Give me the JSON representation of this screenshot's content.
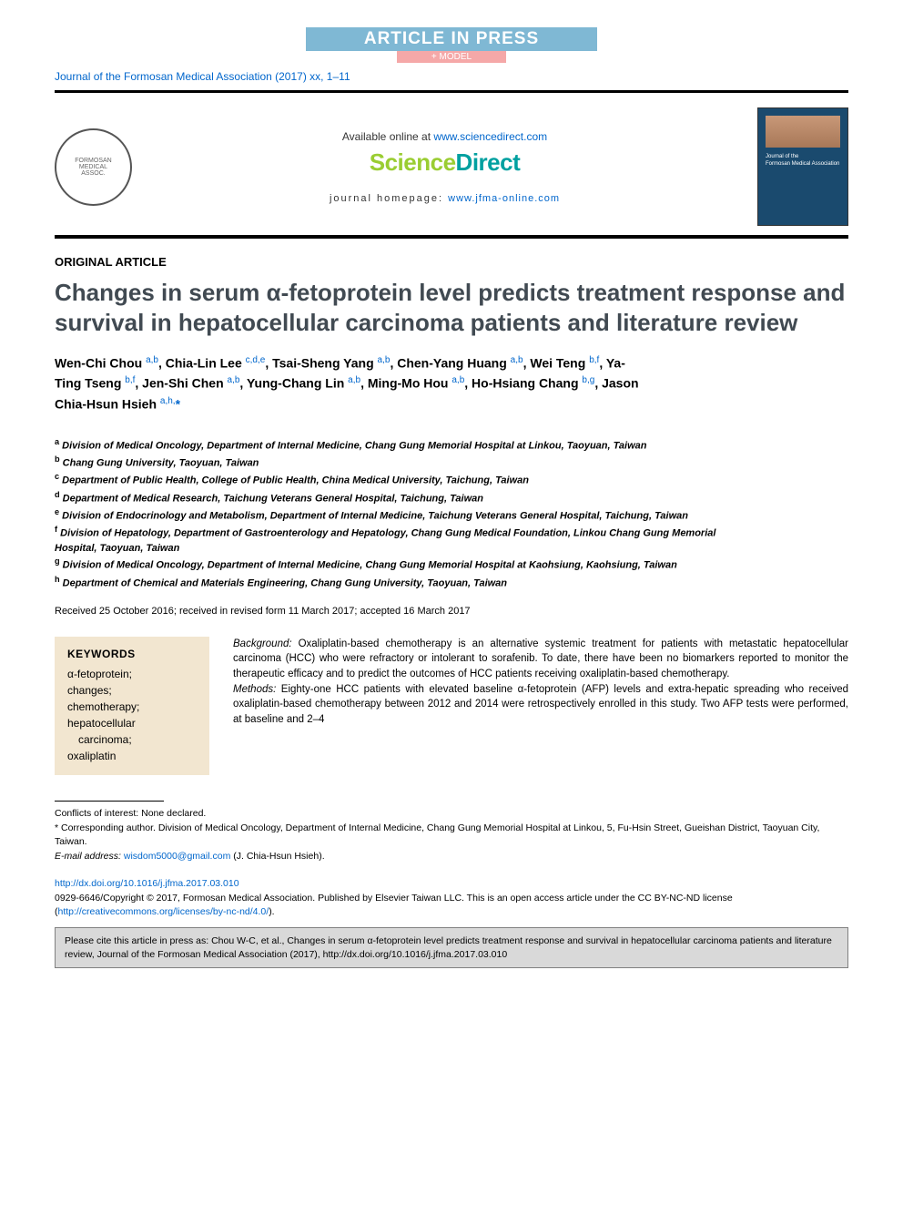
{
  "banner": {
    "article_in_press": "ARTICLE IN PRESS",
    "model": "+ MODEL"
  },
  "journal_ref": "Journal of the Formosan Medical Association (2017) xx, 1–11",
  "header": {
    "available_prefix": "Available online at ",
    "available_url": "www.sciencedirect.com",
    "brand_science": "Science",
    "brand_direct": "Direct",
    "homepage_prefix": "journal homepage: ",
    "homepage_url": "www.jfma-online.com",
    "cover_line1": "Journal of the",
    "cover_line2": "Formosan Medical Association"
  },
  "article_type": "ORIGINAL ARTICLE",
  "title": "Changes in serum α-fetoprotein level predicts treatment response and survival in hepatocellular carcinoma patients and literature review",
  "authors_html": "Wen-Chi Chou <sup>a,b</sup>, Chia-Lin Lee <sup>c,d,e</sup>, Tsai-Sheng Yang <sup>a,b</sup>, Chen-Yang Huang <sup>a,b</sup>, Wei Teng <sup>b,f</sup>, Ya-Ting Tseng <sup>b,f</sup>, Jen-Shi Chen <sup>a,b</sup>, Yung-Chang Lin <sup>a,b</sup>, Ming-Mo Hou <sup>a,b</sup>, Ho-Hsiang Chang <sup>b,g</sup>, Jason Chia-Hsun Hsieh <sup>a,h,</sup><span class=\"star\">*</span>",
  "affiliations": [
    {
      "key": "a",
      "text": "Division of Medical Oncology, Department of Internal Medicine, Chang Gung Memorial Hospital at Linkou, Taoyuan, Taiwan"
    },
    {
      "key": "b",
      "text": "Chang Gung University, Taoyuan, Taiwan"
    },
    {
      "key": "c",
      "text": "Department of Public Health, College of Public Health, China Medical University, Taichung, Taiwan"
    },
    {
      "key": "d",
      "text": "Department of Medical Research, Taichung Veterans General Hospital, Taichung, Taiwan"
    },
    {
      "key": "e",
      "text": "Division of Endocrinology and Metabolism, Department of Internal Medicine, Taichung Veterans General Hospital, Taichung, Taiwan"
    },
    {
      "key": "f",
      "text": "Division of Hepatology, Department of Gastroenterology and Hepatology, Chang Gung Medical Foundation, Linkou Chang Gung Memorial Hospital, Taoyuan, Taiwan"
    },
    {
      "key": "g",
      "text": "Division of Medical Oncology, Department of Internal Medicine, Chang Gung Memorial Hospital at Kaohsiung, Kaohsiung, Taiwan"
    },
    {
      "key": "h",
      "text": "Department of Chemical and Materials Engineering, Chang Gung University, Taoyuan, Taiwan"
    }
  ],
  "dates": "Received 25 October 2016; received in revised form 11 March 2017; accepted 16 March 2017",
  "keywords": {
    "title": "KEYWORDS",
    "items": [
      "α-fetoprotein;",
      "changes;",
      "chemotherapy;",
      "hepatocellular",
      "carcinoma;",
      "oxaliplatin"
    ],
    "indent_indices": [
      4
    ]
  },
  "abstract": {
    "background_label": "Background:",
    "background_text": " Oxaliplatin-based chemotherapy is an alternative systemic treatment for patients with metastatic hepatocellular carcinoma (HCC) who were refractory or intolerant to sorafenib. To date, there have been no biomarkers reported to monitor the therapeutic efficacy and to predict the outcomes of HCC patients receiving oxaliplatin-based chemotherapy.",
    "methods_label": "Methods:",
    "methods_text": " Eighty-one HCC patients with elevated baseline α-fetoprotein (AFP) levels and extra-hepatic spreading who received oxaliplatin-based chemotherapy between 2012 and 2014 were retrospectively enrolled in this study. Two AFP tests were performed, at baseline and 2–4"
  },
  "footnotes": {
    "conflicts": "Conflicts of interest: None declared.",
    "corresponding": "* Corresponding author. Division of Medical Oncology, Department of Internal Medicine, Chang Gung Memorial Hospital at Linkou, 5, Fu-Hsin Street, Gueishan District, Taoyuan City, Taiwan.",
    "email_label": "E-mail address: ",
    "email": "wisdom5000@gmail.com",
    "email_suffix": " (J. Chia-Hsun Hsieh)."
  },
  "doi": {
    "url": "http://dx.doi.org/10.1016/j.jfma.2017.03.010",
    "copyright_prefix": "0929-6646/Copyright © 2017, Formosan Medical Association. Published by Elsevier Taiwan LLC. This is an open access article under the CC BY-NC-ND license (",
    "license_url": "http://creativecommons.org/licenses/by-nc-nd/4.0/",
    "copyright_suffix": ")."
  },
  "cite_box": {
    "prefix": "Please cite this article in press as: Chou W-C, et al., Changes in serum α-fetoprotein level predicts treatment response and survival in hepatocellular carcinoma patients and literature review, Journal of the Formosan Medical Association (2017), ",
    "url": "http://dx.doi.org/10.1016/j.jfma.2017.03.010"
  },
  "colors": {
    "link": "#0066cc",
    "title_gray": "#414a52",
    "keywords_bg": "#f2e6d0",
    "citebox_bg": "#d9d9d9",
    "sd_green": "#9acd32",
    "sd_teal": "#00a0a0",
    "press_bg": "#7fb8d4",
    "model_bg": "#f5a8a8"
  }
}
